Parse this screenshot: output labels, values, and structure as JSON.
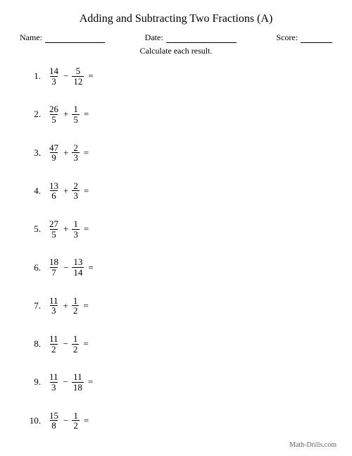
{
  "title": "Adding and Subtracting Two Fractions (A)",
  "header": {
    "name_label": "Name:",
    "date_label": "Date:",
    "score_label": "Score:"
  },
  "instruction": "Calculate each result.",
  "problems": [
    {
      "n": "1.",
      "a_num": "14",
      "a_den": "3",
      "op": "−",
      "b_num": "5",
      "b_den": "12"
    },
    {
      "n": "2.",
      "a_num": "26",
      "a_den": "5",
      "op": "+",
      "b_num": "1",
      "b_den": "5"
    },
    {
      "n": "3.",
      "a_num": "47",
      "a_den": "9",
      "op": "+",
      "b_num": "2",
      "b_den": "3"
    },
    {
      "n": "4.",
      "a_num": "13",
      "a_den": "6",
      "op": "+",
      "b_num": "2",
      "b_den": "3"
    },
    {
      "n": "5.",
      "a_num": "27",
      "a_den": "5",
      "op": "+",
      "b_num": "1",
      "b_den": "3"
    },
    {
      "n": "6.",
      "a_num": "18",
      "a_den": "7",
      "op": "−",
      "b_num": "13",
      "b_den": "14"
    },
    {
      "n": "7.",
      "a_num": "11",
      "a_den": "3",
      "op": "+",
      "b_num": "1",
      "b_den": "2"
    },
    {
      "n": "8.",
      "a_num": "11",
      "a_den": "2",
      "op": "−",
      "b_num": "1",
      "b_den": "2"
    },
    {
      "n": "9.",
      "a_num": "11",
      "a_den": "3",
      "op": "−",
      "b_num": "11",
      "b_den": "18"
    },
    {
      "n": "10.",
      "a_num": "15",
      "a_den": "8",
      "op": "−",
      "b_num": "1",
      "b_den": "2"
    }
  ],
  "equals": "=",
  "footer": "Math-Drills.com",
  "colors": {
    "background": "#ffffff",
    "text": "#000000",
    "footer": "#666666"
  }
}
